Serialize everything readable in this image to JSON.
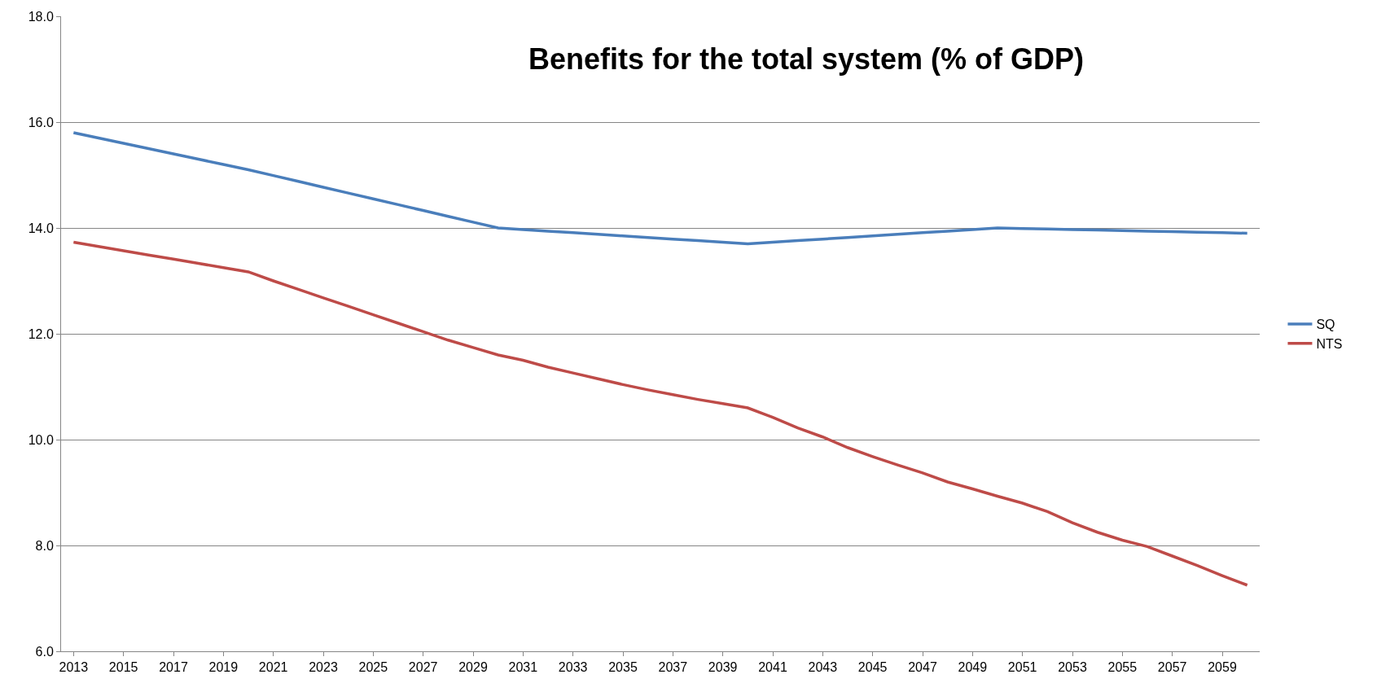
{
  "chart_data": {
    "type": "line",
    "title": "Benefits for the total system (% of GDP)",
    "categories": [
      "2013",
      null,
      "2015",
      null,
      "2017",
      null,
      "2019",
      null,
      "2021",
      null,
      "2023",
      null,
      "2025",
      null,
      "2027",
      null,
      "2029",
      null,
      "2031",
      null,
      "2033",
      null,
      "2035",
      null,
      "2037",
      null,
      "2039",
      null,
      "2041",
      null,
      "2043",
      null,
      "2045",
      null,
      "2047",
      null,
      "2049",
      null,
      "2051",
      null,
      "2053",
      null,
      "2055",
      null,
      "2057",
      null,
      "2059",
      null
    ],
    "series": [
      {
        "name": "SQ",
        "color": "#4a7ebb",
        "values": [
          15.8,
          15.7,
          15.6,
          15.5,
          15.4,
          15.3,
          15.2,
          15.1,
          14.99,
          14.88,
          14.77,
          14.66,
          14.55,
          14.44,
          14.33,
          14.22,
          14.11,
          14.0,
          13.97,
          13.94,
          13.91,
          13.88,
          13.85,
          13.82,
          13.79,
          13.76,
          13.73,
          13.7,
          13.73,
          13.76,
          13.79,
          13.82,
          13.85,
          13.88,
          13.91,
          13.94,
          13.97,
          14.0,
          13.99,
          13.98,
          13.97,
          13.96,
          13.95,
          13.94,
          13.93,
          13.92,
          13.91,
          13.9
        ]
      },
      {
        "name": "NTS",
        "color": "#be4b48",
        "values": [
          13.73,
          13.65,
          13.57,
          13.49,
          13.41,
          13.33,
          13.25,
          13.17,
          13.0,
          12.84,
          12.68,
          12.52,
          12.36,
          12.2,
          12.04,
          11.88,
          11.74,
          11.6,
          11.5,
          11.37,
          11.26,
          11.15,
          11.04,
          10.94,
          10.85,
          10.76,
          10.68,
          10.6,
          10.42,
          10.22,
          10.05,
          9.85,
          9.68,
          9.52,
          9.37,
          9.2,
          9.07,
          8.93,
          8.8,
          8.64,
          8.43,
          8.25,
          8.1,
          7.98,
          7.8,
          7.62,
          7.43,
          7.25
        ]
      }
    ],
    "ylim": [
      6,
      18
    ],
    "yticks": [
      {
        "value": 6,
        "label": "6.0"
      },
      {
        "value": 8,
        "label": "8.0"
      },
      {
        "value": 10,
        "label": "10.0"
      },
      {
        "value": 12,
        "label": "12.0"
      },
      {
        "value": 14,
        "label": "14.0"
      },
      {
        "value": 16,
        "label": "16.0"
      },
      {
        "value": 18,
        "label": "18.0"
      }
    ],
    "grid": "y",
    "legend": "right",
    "marker": "none",
    "line_style": "solid"
  }
}
